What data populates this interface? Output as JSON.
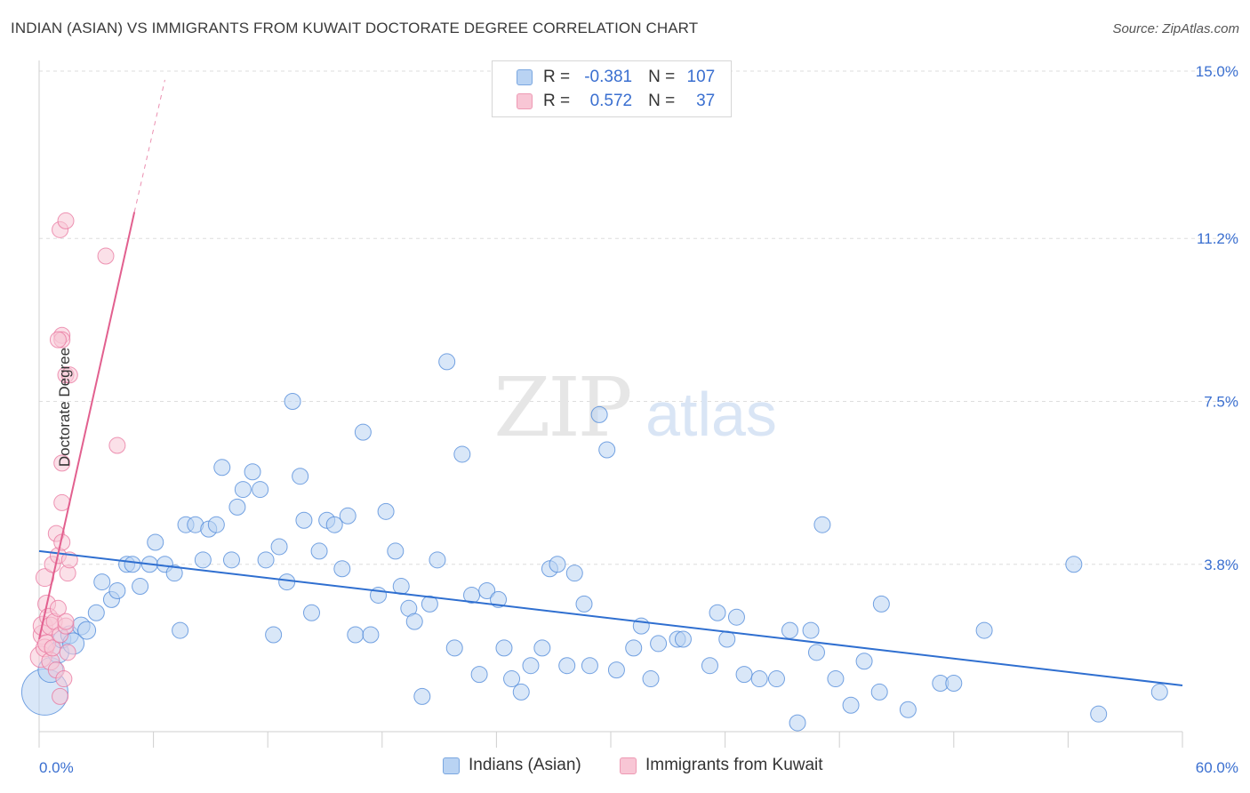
{
  "title": "INDIAN (ASIAN) VS IMMIGRANTS FROM KUWAIT DOCTORATE DEGREE CORRELATION CHART",
  "source": "Source: ZipAtlas.com",
  "watermark": {
    "zip": "ZIP",
    "atlas": "atlas"
  },
  "legend": {
    "r_label": "R =",
    "n_label": "N =",
    "rows": [
      {
        "r": "-0.381",
        "n": "107",
        "color": "#a9c8f0"
      },
      {
        "r": "0.572",
        "n": "37",
        "color": "#f6b7c9"
      }
    ]
  },
  "colors": {
    "blue": "#4a86d8",
    "blue_fill": "#b9d3f3",
    "blue_line": "#2f6fd0",
    "pink": "#e8739c",
    "pink_fill": "#f8c6d5",
    "pink_line": "#e2608f",
    "axis_text": "#3a6fd0",
    "grid": "#dcdcdc"
  },
  "chart_data": {
    "type": "scatter",
    "title": "INDIAN (ASIAN) VS IMMIGRANTS FROM KUWAIT DOCTORATE DEGREE CORRELATION CHART",
    "xlabel": "",
    "ylabel": "Doctorate Degree",
    "xlim": [
      0,
      60
    ],
    "ylim": [
      0,
      15
    ],
    "x_tick_labels": [
      "0.0%",
      "60.0%"
    ],
    "y_ticks": [
      3.8,
      7.5,
      11.2,
      15.0
    ],
    "y_tick_labels": [
      "3.8%",
      "7.5%",
      "11.2%",
      "15.0%"
    ],
    "grid": true,
    "legend_position": "top-center",
    "series": [
      {
        "name": "Indians (Asian)",
        "color": "#4a86d8",
        "trend": {
          "x": [
            0,
            60
          ],
          "y": [
            4.1,
            1.05
          ]
        },
        "points": [
          [
            0.3,
            0.9
          ],
          [
            0.6,
            1.4
          ],
          [
            1.0,
            1.8
          ],
          [
            1.2,
            2.1
          ],
          [
            1.6,
            2.2
          ],
          [
            1.8,
            2.0
          ],
          [
            2.2,
            2.4
          ],
          [
            2.5,
            2.3
          ],
          [
            3.0,
            2.7
          ],
          [
            3.3,
            3.4
          ],
          [
            3.8,
            3.0
          ],
          [
            4.1,
            3.2
          ],
          [
            4.6,
            3.8
          ],
          [
            4.9,
            3.8
          ],
          [
            5.3,
            3.3
          ],
          [
            5.8,
            3.8
          ],
          [
            6.1,
            4.3
          ],
          [
            6.6,
            3.8
          ],
          [
            7.1,
            3.6
          ],
          [
            7.4,
            2.3
          ],
          [
            7.7,
            4.7
          ],
          [
            8.2,
            4.7
          ],
          [
            8.6,
            3.9
          ],
          [
            8.9,
            4.6
          ],
          [
            9.3,
            4.7
          ],
          [
            9.6,
            6.0
          ],
          [
            10.1,
            3.9
          ],
          [
            10.4,
            5.1
          ],
          [
            10.7,
            5.5
          ],
          [
            11.2,
            5.9
          ],
          [
            11.6,
            5.5
          ],
          [
            11.9,
            3.9
          ],
          [
            12.3,
            2.2
          ],
          [
            12.6,
            4.2
          ],
          [
            13.0,
            3.4
          ],
          [
            13.3,
            7.5
          ],
          [
            13.7,
            5.8
          ],
          [
            13.9,
            4.8
          ],
          [
            14.3,
            2.7
          ],
          [
            14.7,
            4.1
          ],
          [
            15.1,
            4.8
          ],
          [
            15.5,
            4.7
          ],
          [
            15.9,
            3.7
          ],
          [
            16.2,
            4.9
          ],
          [
            16.6,
            2.2
          ],
          [
            17.0,
            6.8
          ],
          [
            17.4,
            2.2
          ],
          [
            17.8,
            3.1
          ],
          [
            18.2,
            5.0
          ],
          [
            18.7,
            4.1
          ],
          [
            19.0,
            3.3
          ],
          [
            19.4,
            2.8
          ],
          [
            19.7,
            2.5
          ],
          [
            20.1,
            0.8
          ],
          [
            20.5,
            2.9
          ],
          [
            20.9,
            3.9
          ],
          [
            21.4,
            8.4
          ],
          [
            21.8,
            1.9
          ],
          [
            22.2,
            6.3
          ],
          [
            22.7,
            3.1
          ],
          [
            23.1,
            1.3
          ],
          [
            23.5,
            3.2
          ],
          [
            24.1,
            3.0
          ],
          [
            24.4,
            1.9
          ],
          [
            24.8,
            1.2
          ],
          [
            25.3,
            0.9
          ],
          [
            25.8,
            1.5
          ],
          [
            26.4,
            1.9
          ],
          [
            26.8,
            3.7
          ],
          [
            27.2,
            3.8
          ],
          [
            27.7,
            1.5
          ],
          [
            28.1,
            3.6
          ],
          [
            28.6,
            2.9
          ],
          [
            28.9,
            1.5
          ],
          [
            29.4,
            7.2
          ],
          [
            29.8,
            6.4
          ],
          [
            30.3,
            1.4
          ],
          [
            31.2,
            1.9
          ],
          [
            31.6,
            2.4
          ],
          [
            32.1,
            1.2
          ],
          [
            32.5,
            2.0
          ],
          [
            33.5,
            2.1
          ],
          [
            33.8,
            2.1
          ],
          [
            35.2,
            1.5
          ],
          [
            35.6,
            2.7
          ],
          [
            36.1,
            2.1
          ],
          [
            36.6,
            2.6
          ],
          [
            37.0,
            1.3
          ],
          [
            37.8,
            1.2
          ],
          [
            38.7,
            1.2
          ],
          [
            39.4,
            2.3
          ],
          [
            40.5,
            2.3
          ],
          [
            40.8,
            1.8
          ],
          [
            41.1,
            4.7
          ],
          [
            41.8,
            1.2
          ],
          [
            42.6,
            0.6
          ],
          [
            43.3,
            1.6
          ],
          [
            44.1,
            0.9
          ],
          [
            44.2,
            2.9
          ],
          [
            45.6,
            0.5
          ],
          [
            47.3,
            1.1
          ],
          [
            48.0,
            1.1
          ],
          [
            49.6,
            2.3
          ],
          [
            54.3,
            3.8
          ],
          [
            55.6,
            0.4
          ],
          [
            58.8,
            0.9
          ],
          [
            39.8,
            0.2
          ]
        ],
        "sizes": [
          26,
          14,
          12,
          10,
          10,
          12,
          10,
          10,
          9,
          9,
          9,
          9,
          9,
          9,
          9,
          9,
          9,
          9,
          9,
          9,
          9,
          9,
          9,
          9,
          9,
          9,
          9,
          9,
          9,
          9,
          9,
          9,
          9,
          9,
          9,
          9,
          9,
          9,
          9,
          9,
          9,
          9,
          9,
          9,
          9,
          9,
          9,
          9,
          9,
          9,
          9,
          9,
          9,
          9,
          9,
          9,
          9,
          9,
          9,
          9,
          9,
          9,
          9,
          9,
          9,
          9,
          9,
          9,
          9,
          9,
          9,
          9,
          9,
          9,
          9,
          9,
          9,
          9,
          9,
          9,
          9,
          9,
          9,
          9,
          9,
          9,
          9,
          9,
          9,
          9,
          9,
          9,
          9,
          9,
          9,
          9,
          9,
          9,
          9,
          9,
          9,
          9,
          9,
          9,
          9,
          9,
          9
        ]
      },
      {
        "name": "Immigrants from Kuwait",
        "color": "#e8739c",
        "trend": {
          "x": [
            0,
            5.0
          ],
          "y": [
            2.1,
            11.8
          ],
          "dash_to": [
            6.6,
            14.8
          ]
        },
        "points": [
          [
            0.1,
            1.7
          ],
          [
            0.2,
            2.2
          ],
          [
            0.2,
            2.4
          ],
          [
            0.3,
            1.9
          ],
          [
            0.3,
            3.5
          ],
          [
            0.4,
            2.0
          ],
          [
            0.4,
            2.9
          ],
          [
            0.5,
            2.6
          ],
          [
            0.6,
            2.4
          ],
          [
            0.6,
            1.6
          ],
          [
            0.7,
            3.8
          ],
          [
            0.7,
            1.9
          ],
          [
            0.8,
            2.5
          ],
          [
            0.9,
            1.4
          ],
          [
            0.9,
            4.5
          ],
          [
            1.0,
            4.0
          ],
          [
            1.0,
            2.8
          ],
          [
            1.1,
            0.8
          ],
          [
            1.1,
            2.2
          ],
          [
            1.2,
            4.3
          ],
          [
            1.2,
            6.1
          ],
          [
            1.2,
            5.2
          ],
          [
            1.3,
            1.2
          ],
          [
            1.4,
            2.4
          ],
          [
            1.4,
            2.5
          ],
          [
            1.5,
            1.8
          ],
          [
            1.5,
            3.6
          ],
          [
            1.6,
            3.9
          ],
          [
            1.2,
            9.0
          ],
          [
            1.2,
            8.9
          ],
          [
            1.4,
            8.1
          ],
          [
            1.6,
            8.1
          ],
          [
            1.1,
            11.4
          ],
          [
            1.4,
            11.6
          ],
          [
            3.5,
            10.8
          ],
          [
            4.1,
            6.5
          ],
          [
            1.0,
            8.9
          ]
        ],
        "sizes": [
          12,
          11,
          11,
          10,
          10,
          10,
          10,
          10,
          10,
          10,
          9,
          9,
          9,
          9,
          9,
          9,
          9,
          9,
          9,
          9,
          9,
          9,
          9,
          9,
          9,
          9,
          9,
          9,
          9,
          9,
          9,
          9,
          9,
          9,
          9,
          9,
          9
        ]
      }
    ]
  }
}
